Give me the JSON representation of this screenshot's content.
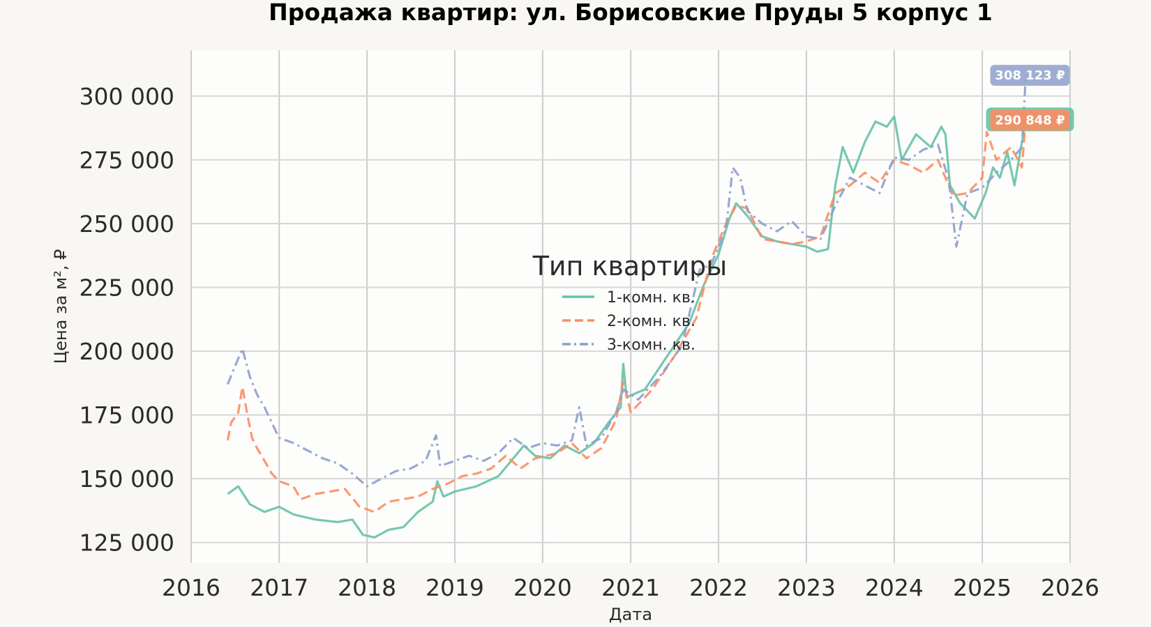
{
  "chart_data": {
    "type": "line",
    "title": "Продажа квартир: ул. Борисовские Пруды 5 корпус 1",
    "xlabel": "Дата",
    "ylabel": "Цена за м², ₽",
    "xlim": [
      "2016-01-01",
      "2026-01-01"
    ],
    "ylim": [
      117000,
      318000
    ],
    "x_ticks": [
      "2016",
      "2017",
      "2018",
      "2019",
      "2020",
      "2021",
      "2022",
      "2023",
      "2024",
      "2025",
      "2026"
    ],
    "y_ticks": [
      {
        "value": 125000,
        "label": "125 000"
      },
      {
        "value": 150000,
        "label": "150 000"
      },
      {
        "value": 175000,
        "label": "175 000"
      },
      {
        "value": 200000,
        "label": "200 000"
      },
      {
        "value": 225000,
        "label": "225 000"
      },
      {
        "value": 250000,
        "label": "250 000"
      },
      {
        "value": 275000,
        "label": "275 000"
      },
      {
        "value": 300000,
        "label": "300 000"
      }
    ],
    "grid": true,
    "legend": {
      "title": "Тип квартиры",
      "position": "center"
    },
    "series": [
      {
        "name": "1-комн. кв.",
        "color": "#66c2a5",
        "dash": "solid",
        "points": [
          [
            "2016-06-01",
            144000
          ],
          [
            "2016-07-15",
            147000
          ],
          [
            "2016-09-01",
            140000
          ],
          [
            "2016-11-01",
            137000
          ],
          [
            "2017-01-01",
            139000
          ],
          [
            "2017-03-01",
            136000
          ],
          [
            "2017-06-01",
            134000
          ],
          [
            "2017-09-01",
            133000
          ],
          [
            "2017-11-01",
            134000
          ],
          [
            "2017-12-15",
            128000
          ],
          [
            "2018-02-01",
            127000
          ],
          [
            "2018-04-01",
            130000
          ],
          [
            "2018-06-01",
            131000
          ],
          [
            "2018-08-01",
            137000
          ],
          [
            "2018-10-01",
            141000
          ],
          [
            "2018-10-20",
            149000
          ],
          [
            "2018-11-15",
            143000
          ],
          [
            "2019-01-01",
            145000
          ],
          [
            "2019-04-01",
            147000
          ],
          [
            "2019-07-01",
            151000
          ],
          [
            "2019-09-01",
            158000
          ],
          [
            "2019-10-15",
            163000
          ],
          [
            "2019-12-01",
            159000
          ],
          [
            "2020-02-01",
            158000
          ],
          [
            "2020-04-01",
            163000
          ],
          [
            "2020-06-01",
            160000
          ],
          [
            "2020-08-01",
            164000
          ],
          [
            "2020-10-01",
            172000
          ],
          [
            "2020-11-20",
            178000
          ],
          [
            "2020-12-01",
            195000
          ],
          [
            "2020-12-15",
            182000
          ],
          [
            "2021-03-01",
            185000
          ],
          [
            "2021-06-01",
            198000
          ],
          [
            "2021-09-01",
            211000
          ],
          [
            "2021-11-01",
            226000
          ],
          [
            "2022-01-01",
            238000
          ],
          [
            "2022-02-15",
            252000
          ],
          [
            "2022-03-15",
            258000
          ],
          [
            "2022-05-01",
            253000
          ],
          [
            "2022-07-01",
            245000
          ],
          [
            "2022-09-01",
            243000
          ],
          [
            "2022-11-01",
            242000
          ],
          [
            "2023-01-01",
            241000
          ],
          [
            "2023-02-15",
            239000
          ],
          [
            "2023-04-01",
            240000
          ],
          [
            "2023-05-01",
            265000
          ],
          [
            "2023-06-01",
            280000
          ],
          [
            "2023-07-15",
            270000
          ],
          [
            "2023-09-01",
            282000
          ],
          [
            "2023-10-15",
            290000
          ],
          [
            "2023-12-01",
            288000
          ],
          [
            "2024-01-01",
            292000
          ],
          [
            "2024-02-01",
            275000
          ],
          [
            "2024-04-01",
            285000
          ],
          [
            "2024-06-01",
            280000
          ],
          [
            "2024-07-15",
            288000
          ],
          [
            "2024-08-01",
            285000
          ],
          [
            "2024-08-20",
            265000
          ],
          [
            "2024-10-01",
            258000
          ],
          [
            "2024-12-01",
            252000
          ],
          [
            "2025-01-15",
            262000
          ],
          [
            "2025-02-15",
            272000
          ],
          [
            "2025-03-15",
            268000
          ],
          [
            "2025-04-15",
            278000
          ],
          [
            "2025-05-15",
            265000
          ],
          [
            "2025-06-15",
            282000
          ],
          [
            "2025-07-01",
            290848
          ]
        ]
      },
      {
        "name": "2-комн. кв.",
        "color": "#fc8d62",
        "dash": "dashed",
        "points": [
          [
            "2016-06-01",
            165000
          ],
          [
            "2016-06-15",
            172000
          ],
          [
            "2016-07-15",
            176000
          ],
          [
            "2016-08-01",
            186000
          ],
          [
            "2016-08-20",
            176000
          ],
          [
            "2016-09-10",
            166000
          ],
          [
            "2016-10-01",
            162000
          ],
          [
            "2016-11-01",
            157000
          ],
          [
            "2016-12-01",
            152000
          ],
          [
            "2017-01-01",
            149000
          ],
          [
            "2017-03-01",
            147000
          ],
          [
            "2017-04-01",
            142000
          ],
          [
            "2017-06-01",
            144000
          ],
          [
            "2017-08-01",
            145000
          ],
          [
            "2017-10-01",
            146000
          ],
          [
            "2017-12-01",
            139000
          ],
          [
            "2018-02-01",
            137000
          ],
          [
            "2018-04-01",
            141000
          ],
          [
            "2018-06-01",
            142000
          ],
          [
            "2018-08-01",
            143000
          ],
          [
            "2018-10-01",
            146000
          ],
          [
            "2018-12-01",
            148000
          ],
          [
            "2019-02-01",
            151000
          ],
          [
            "2019-04-01",
            152000
          ],
          [
            "2019-06-01",
            154000
          ],
          [
            "2019-08-01",
            159000
          ],
          [
            "2019-10-01",
            154000
          ],
          [
            "2019-12-01",
            158000
          ],
          [
            "2020-03-01",
            160000
          ],
          [
            "2020-05-01",
            164000
          ],
          [
            "2020-07-01",
            158000
          ],
          [
            "2020-09-01",
            162000
          ],
          [
            "2020-11-01",
            173000
          ],
          [
            "2020-12-01",
            188000
          ],
          [
            "2021-01-01",
            176000
          ],
          [
            "2021-04-01",
            185000
          ],
          [
            "2021-07-01",
            198000
          ],
          [
            "2021-10-01",
            213000
          ],
          [
            "2021-12-01",
            236000
          ],
          [
            "2022-02-01",
            250000
          ],
          [
            "2022-03-15",
            257000
          ],
          [
            "2022-05-01",
            256000
          ],
          [
            "2022-07-01",
            244000
          ],
          [
            "2022-09-01",
            243000
          ],
          [
            "2022-11-01",
            242000
          ],
          [
            "2023-01-01",
            243000
          ],
          [
            "2023-03-01",
            245000
          ],
          [
            "2023-05-01",
            262000
          ],
          [
            "2023-07-01",
            265000
          ],
          [
            "2023-09-01",
            270000
          ],
          [
            "2023-11-01",
            266000
          ],
          [
            "2024-01-01",
            275000
          ],
          [
            "2024-03-01",
            273000
          ],
          [
            "2024-05-01",
            270000
          ],
          [
            "2024-07-01",
            275000
          ],
          [
            "2024-09-01",
            261000
          ],
          [
            "2024-11-01",
            262000
          ],
          [
            "2025-01-01",
            268000
          ],
          [
            "2025-01-20",
            286000
          ],
          [
            "2025-03-01",
            275000
          ],
          [
            "2025-05-01",
            280000
          ],
          [
            "2025-06-15",
            272000
          ],
          [
            "2025-07-01",
            290848
          ]
        ]
      },
      {
        "name": "3-комн. кв.",
        "color": "#8da0cb",
        "dash": "dashdot",
        "points": [
          [
            "2016-06-01",
            187000
          ],
          [
            "2016-07-01",
            194000
          ],
          [
            "2016-08-01",
            201000
          ],
          [
            "2016-09-01",
            190000
          ],
          [
            "2016-10-01",
            183000
          ],
          [
            "2016-11-01",
            178000
          ],
          [
            "2016-12-01",
            172000
          ],
          [
            "2017-01-01",
            166000
          ],
          [
            "2017-03-01",
            164000
          ],
          [
            "2017-05-01",
            161000
          ],
          [
            "2017-07-01",
            158000
          ],
          [
            "2017-09-01",
            156000
          ],
          [
            "2017-11-01",
            152000
          ],
          [
            "2018-01-01",
            147000
          ],
          [
            "2018-03-01",
            150000
          ],
          [
            "2018-05-01",
            153000
          ],
          [
            "2018-07-01",
            154000
          ],
          [
            "2018-09-01",
            157000
          ],
          [
            "2018-10-15",
            167000
          ],
          [
            "2018-11-01",
            155000
          ],
          [
            "2019-01-01",
            157000
          ],
          [
            "2019-03-01",
            159000
          ],
          [
            "2019-05-01",
            157000
          ],
          [
            "2019-07-01",
            160000
          ],
          [
            "2019-09-01",
            166000
          ],
          [
            "2019-11-01",
            162000
          ],
          [
            "2020-01-01",
            164000
          ],
          [
            "2020-03-01",
            163000
          ],
          [
            "2020-05-01",
            165000
          ],
          [
            "2020-06-01",
            178000
          ],
          [
            "2020-07-01",
            163000
          ],
          [
            "2020-09-01",
            166000
          ],
          [
            "2020-11-01",
            176000
          ],
          [
            "2020-12-01",
            185000
          ],
          [
            "2021-02-01",
            181000
          ],
          [
            "2021-05-01",
            190000
          ],
          [
            "2021-08-01",
            202000
          ],
          [
            "2021-10-15",
            232000
          ],
          [
            "2021-12-01",
            234000
          ],
          [
            "2022-02-01",
            248000
          ],
          [
            "2022-03-01",
            272000
          ],
          [
            "2022-04-01",
            268000
          ],
          [
            "2022-05-01",
            255000
          ],
          [
            "2022-07-01",
            250000
          ],
          [
            "2022-09-01",
            247000
          ],
          [
            "2022-11-01",
            251000
          ],
          [
            "2023-01-01",
            245000
          ],
          [
            "2023-03-01",
            244000
          ],
          [
            "2023-05-01",
            257000
          ],
          [
            "2023-07-01",
            268000
          ],
          [
            "2023-09-01",
            265000
          ],
          [
            "2023-11-01",
            262000
          ],
          [
            "2024-01-01",
            276000
          ],
          [
            "2024-03-01",
            275000
          ],
          [
            "2024-05-01",
            279000
          ],
          [
            "2024-07-01",
            281000
          ],
          [
            "2024-08-15",
            267000
          ],
          [
            "2024-09-15",
            241000
          ],
          [
            "2024-11-01",
            262000
          ],
          [
            "2025-01-01",
            264000
          ],
          [
            "2025-03-01",
            270000
          ],
          [
            "2025-05-01",
            275000
          ],
          [
            "2025-06-15",
            280000
          ],
          [
            "2025-07-01",
            308123
          ]
        ]
      }
    ],
    "annotations": [
      {
        "text": "308 123 ₽",
        "x": "2025-07-01",
        "y": 308123,
        "color": "#8da0cb"
      },
      {
        "text": "290 848 ₽",
        "x": "2025-07-01",
        "y": 290848,
        "color": "#66c2a5",
        "overlay_color": "#fc8d62"
      }
    ]
  }
}
